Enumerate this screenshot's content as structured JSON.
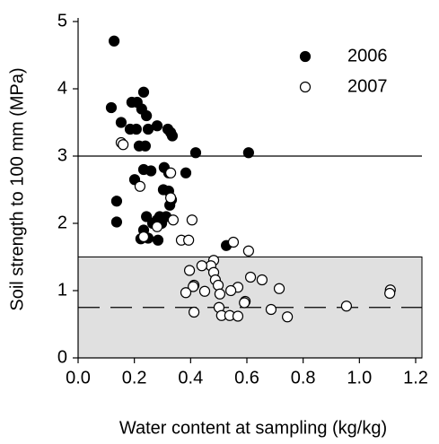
{
  "chart_data": {
    "type": "scatter",
    "x_label": "Water content at sampling (kg/kg)",
    "y_label": "Soil strength to 100 mm (MPa)",
    "xlim": [
      0,
      1.2
    ],
    "ylim": [
      0,
      5
    ],
    "xticks": [
      {
        "value": 0,
        "label": "0.0"
      },
      0.2,
      0.4,
      0.6,
      0.8,
      {
        "value": 1,
        "label": "1.0"
      },
      1.2
    ],
    "yticks": [
      0,
      1,
      2,
      3,
      4,
      5
    ],
    "reference_lines": [
      {
        "y": 3,
        "style": "solid"
      },
      {
        "y": 0.75,
        "style": "dashed"
      }
    ],
    "shaded_band": [
      0,
      1.5
    ],
    "legend": "top-right",
    "series": [
      {
        "name": "2006",
        "color": "#000000",
        "fill": "#000000",
        "x": [
          0.128,
          0.118,
          0.153,
          0.191,
          0.21,
          0.233,
          0.226,
          0.243,
          0.185,
          0.207,
          0.249,
          0.281,
          0.217,
          0.239,
          0.319,
          0.329,
          0.335,
          0.418,
          0.606,
          0.137,
          0.137,
          0.201,
          0.233,
          0.259,
          0.306,
          0.322,
          0.383,
          0.303,
          0.322,
          0.326,
          0.332,
          0.243,
          0.281,
          0.29,
          0.313,
          0.297,
          0.233,
          0.249,
          0.223,
          0.284,
          0.265,
          0.527
        ],
        "y": [
          4.71,
          3.72,
          3.5,
          3.8,
          3.8,
          3.95,
          3.7,
          3.6,
          3.4,
          3.4,
          3.4,
          3.45,
          3.15,
          3.15,
          3.4,
          3.35,
          3.3,
          3.05,
          3.05,
          2.33,
          2.02,
          2.65,
          2.8,
          2.78,
          2.83,
          2.75,
          2.75,
          2.5,
          2.48,
          2.27,
          2.35,
          2.1,
          2.05,
          2.1,
          2.1,
          2.0,
          1.9,
          1.78,
          1.77,
          1.75,
          2.0,
          1.67
        ]
      },
      {
        "name": "2007",
        "color": "#000000",
        "fill": "#ffffff",
        "x": [
          0.153,
          0.16,
          0.22,
          0.329,
          0.329,
          0.338,
          0.405,
          0.281,
          0.233,
          0.367,
          0.393,
          0.552,
          0.606,
          0.482,
          0.472,
          0.44,
          0.396,
          0.482,
          0.488,
          0.498,
          0.412,
          0.409,
          0.45,
          0.383,
          0.504,
          0.568,
          0.613,
          0.654,
          0.715,
          0.594,
          0.591,
          0.501,
          0.412,
          0.51,
          0.539,
          0.568,
          0.686,
          0.744,
          0.954,
          1.11,
          1.108,
          0.543
        ],
        "y": [
          3.2,
          3.17,
          2.55,
          2.75,
          2.38,
          2.05,
          2.05,
          1.95,
          1.8,
          1.75,
          1.75,
          1.72,
          1.59,
          1.45,
          1.37,
          1.37,
          1.3,
          1.27,
          1.16,
          1.08,
          1.08,
          1.06,
          0.99,
          0.97,
          0.95,
          1.05,
          1.2,
          1.16,
          1.03,
          0.84,
          0.82,
          0.75,
          0.68,
          0.63,
          0.63,
          0.62,
          0.72,
          0.61,
          0.77,
          1.01,
          0.96,
          1.0
        ]
      }
    ]
  }
}
